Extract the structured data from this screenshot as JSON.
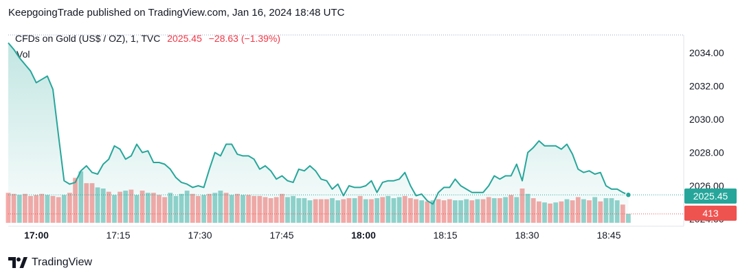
{
  "header": {
    "published": "KeepgoingTrade published on TradingView.com, Jan 16, 2024 18:48 UTC"
  },
  "legend": {
    "symbol": "CFDs on Gold (US$ / OZ), 1, TVC",
    "value": "2025.45",
    "change": "−28.63 (−1.39%)"
  },
  "vol_label": "Vol",
  "footer": {
    "brand": "TradingView"
  },
  "colors": {
    "line": "#26a69a",
    "up": "#26a69a",
    "down": "#ef5350",
    "price_badge": "#26a69a",
    "vol_badge": "#ef5350"
  },
  "chart_data": {
    "type": "area",
    "title": "CFDs on Gold (US$ / OZ), 1, TVC",
    "x_ticks": [
      "17:00",
      "17:15",
      "17:30",
      "17:45",
      "18:00",
      "18:15",
      "18:30",
      "18:45"
    ],
    "x_ticks_bold": [
      "17:00",
      "18:00"
    ],
    "y_ticks": [
      "2034.00",
      "2032.00",
      "2030.00",
      "2028.00",
      "2026.00",
      "2024.00"
    ],
    "ylim": [
      2023.8,
      2035.1
    ],
    "last_price": "2025.45",
    "last_volume": "413",
    "grid": false,
    "series": [
      {
        "values": [
          2034.6,
          2034.2,
          2033.7,
          2033.3,
          2032.9,
          2032.2,
          2032.4,
          2032.6,
          2031.8,
          2029.0,
          2026.3,
          2026.1,
          2026.2,
          2026.9,
          2027.2,
          2026.8,
          2026.7,
          2027.3,
          2027.6,
          2028.4,
          2028.2,
          2027.6,
          2027.8,
          2028.5,
          2028.0,
          2028.1,
          2027.4,
          2027.4,
          2027.3,
          2027.0,
          2026.5,
          2026.2,
          2026.1,
          2025.9,
          2026.0,
          2025.9,
          2027.0,
          2028.0,
          2027.8,
          2028.5,
          2028.5,
          2027.9,
          2027.8,
          2027.8,
          2027.6,
          2027.0,
          2027.2,
          2026.9,
          2026.4,
          2026.6,
          2026.3,
          2026.2,
          2027.0,
          2026.9,
          2027.2,
          2026.9,
          2026.4,
          2026.3,
          2025.8,
          2026.1,
          2025.4,
          2026.0,
          2025.9,
          2025.9,
          2026.0,
          2026.3,
          2025.6,
          2026.2,
          2026.3,
          2026.3,
          2026.4,
          2026.8,
          2026.0,
          2025.4,
          2025.5,
          2025.1,
          2024.9,
          2025.6,
          2025.9,
          2025.9,
          2026.4,
          2026.0,
          2025.8,
          2025.6,
          2025.6,
          2025.6,
          2026.0,
          2026.6,
          2026.4,
          2026.6,
          2026.6,
          2027.3,
          2026.3,
          2028.0,
          2028.3,
          2028.7,
          2028.4,
          2028.4,
          2028.4,
          2028.2,
          2028.5,
          2027.9,
          2027.0,
          2026.8,
          2026.9,
          2026.7,
          2026.8,
          2026.0,
          2025.8,
          2025.8,
          2025.6,
          2025.45
        ]
      },
      {
        "name": "Vol",
        "values": [
          1400,
          1350,
          1300,
          1350,
          1250,
          1300,
          1350,
          1300,
          1250,
          1200,
          1300,
          1400,
          2100,
          2400,
          1850,
          1850,
          1650,
          1600,
          1450,
          1300,
          1450,
          1500,
          1550,
          1300,
          1500,
          1400,
          1400,
          1300,
          1200,
          1400,
          1250,
          1350,
          1500,
          1350,
          1250,
          1300,
          1350,
          1400,
          1500,
          1400,
          1300,
          1350,
          1300,
          1300,
          1250,
          1250,
          1200,
          1150,
          1200,
          1350,
          1200,
          1250,
          1150,
          1150,
          1050,
          1100,
          1100,
          1100,
          1150,
          1050,
          1100,
          1150,
          1150,
          1250,
          1100,
          1100,
          1150,
          1200,
          1250,
          1150,
          1200,
          1250,
          1150,
          1100,
          1050,
          1000,
          1050,
          1100,
          1050,
          1100,
          1050,
          1050,
          1100,
          1050,
          1100,
          1100,
          1200,
          1150,
          1150,
          1200,
          1300,
          1200,
          1600,
          1350,
          1150,
          1000,
          950,
          900,
          950,
          1000,
          1100,
          1050,
          1200,
          1100,
          1050,
          1200,
          1000,
          1150,
          1150,
          1050,
          850,
          413
        ],
        "directions": "ddgddddgddgddgddggdgdgdgdgdddggggddgdggdgdgdddddddgggggdddggddgdgdgdgggdddgdgdddgggdgddgdgdgdgddgdgdgddgdgdgggdgddd"
      }
    ]
  }
}
